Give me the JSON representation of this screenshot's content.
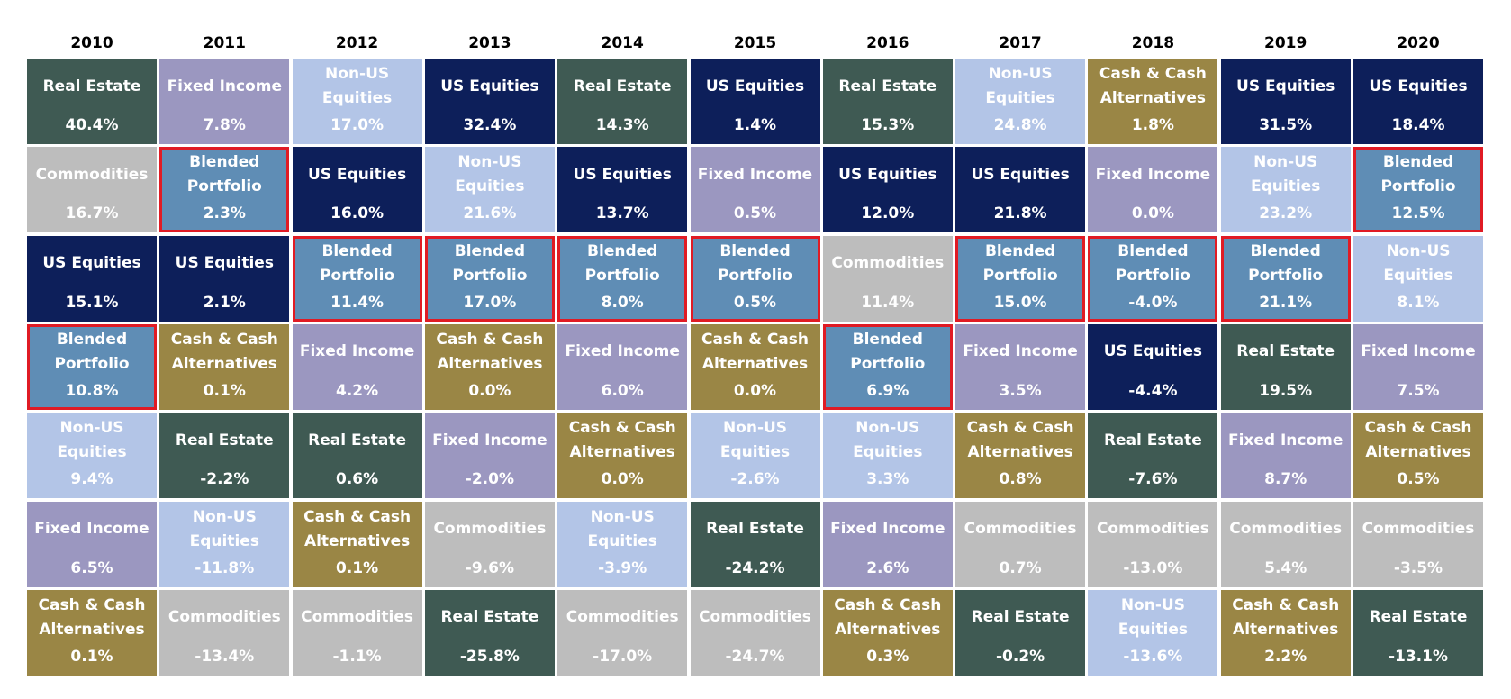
{
  "table": {
    "columns": [
      {
        "year": "2010",
        "cells": [
          {
            "label": "Real Estate",
            "value": "40.4%"
          },
          {
            "label": "Commodities",
            "value": "16.7%"
          },
          {
            "label": "US Equities",
            "value": "15.1%"
          },
          {
            "label": "Blended Portfolio",
            "value": "10.8%"
          },
          {
            "label": "Non-US Equities",
            "value": "9.4%"
          },
          {
            "label": "Fixed Income",
            "value": "6.5%"
          },
          {
            "label": "Cash & Cash Alternatives",
            "value": "0.1%"
          }
        ]
      },
      {
        "year": "2011",
        "cells": [
          {
            "label": "Fixed Income",
            "value": "7.8%"
          },
          {
            "label": "Blended Portfolio",
            "value": "2.3%"
          },
          {
            "label": "US Equities",
            "value": "2.1%"
          },
          {
            "label": "Cash & Cash Alternatives",
            "value": "0.1%"
          },
          {
            "label": "Real Estate",
            "value": "-2.2%"
          },
          {
            "label": "Non-US Equities",
            "value": "-11.8%"
          },
          {
            "label": "Commodities",
            "value": "-13.4%"
          }
        ]
      },
      {
        "year": "2012",
        "cells": [
          {
            "label": "Non-US Equities",
            "value": "17.0%"
          },
          {
            "label": "US Equities",
            "value": "16.0%"
          },
          {
            "label": "Blended Portfolio",
            "value": "11.4%"
          },
          {
            "label": "Fixed Income",
            "value": "4.2%"
          },
          {
            "label": "Real Estate",
            "value": "0.6%"
          },
          {
            "label": "Cash & Cash Alternatives",
            "value": "0.1%"
          },
          {
            "label": "Commodities",
            "value": "-1.1%"
          }
        ]
      },
      {
        "year": "2013",
        "cells": [
          {
            "label": "US Equities",
            "value": "32.4%"
          },
          {
            "label": "Non-US Equities",
            "value": "21.6%"
          },
          {
            "label": "Blended Portfolio",
            "value": "17.0%"
          },
          {
            "label": "Cash & Cash Alternatives",
            "value": "0.0%"
          },
          {
            "label": "Fixed Income",
            "value": "-2.0%"
          },
          {
            "label": "Commodities",
            "value": "-9.6%"
          },
          {
            "label": "Real Estate",
            "value": "-25.8%"
          }
        ]
      },
      {
        "year": "2014",
        "cells": [
          {
            "label": "Real Estate",
            "value": "14.3%"
          },
          {
            "label": "US Equities",
            "value": "13.7%"
          },
          {
            "label": "Blended Portfolio",
            "value": "8.0%"
          },
          {
            "label": "Fixed Income",
            "value": "6.0%"
          },
          {
            "label": "Cash & Cash Alternatives",
            "value": "0.0%"
          },
          {
            "label": "Non-US Equities",
            "value": "-3.9%"
          },
          {
            "label": "Commodities",
            "value": "-17.0%"
          }
        ]
      },
      {
        "year": "2015",
        "cells": [
          {
            "label": "US Equities",
            "value": "1.4%"
          },
          {
            "label": "Fixed Income",
            "value": "0.5%"
          },
          {
            "label": "Blended Portfolio",
            "value": "0.5%"
          },
          {
            "label": "Cash & Cash Alternatives",
            "value": "0.0%"
          },
          {
            "label": "Non-US Equities",
            "value": "-2.6%"
          },
          {
            "label": "Real Estate",
            "value": "-24.2%"
          },
          {
            "label": "Commodities",
            "value": "-24.7%"
          }
        ]
      },
      {
        "year": "2016",
        "cells": [
          {
            "label": "Real Estate",
            "value": "15.3%"
          },
          {
            "label": "US Equities",
            "value": "12.0%"
          },
          {
            "label": "Commodities",
            "value": "11.4%"
          },
          {
            "label": "Blended Portfolio",
            "value": "6.9%"
          },
          {
            "label": "Non-US Equities",
            "value": "3.3%"
          },
          {
            "label": "Fixed Income",
            "value": "2.6%"
          },
          {
            "label": "Cash & Cash Alternatives",
            "value": "0.3%"
          }
        ]
      },
      {
        "year": "2017",
        "cells": [
          {
            "label": "Non-US Equities",
            "value": "24.8%"
          },
          {
            "label": "US Equities",
            "value": "21.8%"
          },
          {
            "label": "Blended Portfolio",
            "value": "15.0%"
          },
          {
            "label": "Fixed Income",
            "value": "3.5%"
          },
          {
            "label": "Cash & Cash Alternatives",
            "value": "0.8%"
          },
          {
            "label": "Commodities",
            "value": "0.7%"
          },
          {
            "label": "Real Estate",
            "value": "-0.2%"
          }
        ]
      },
      {
        "year": "2018",
        "cells": [
          {
            "label": "Cash & Cash Alternatives",
            "value": "1.8%"
          },
          {
            "label": "Fixed Income",
            "value": "0.0%"
          },
          {
            "label": "Blended Portfolio",
            "value": "-4.0%"
          },
          {
            "label": "US Equities",
            "value": "-4.4%"
          },
          {
            "label": "Real Estate",
            "value": "-7.6%"
          },
          {
            "label": "Commodities",
            "value": "-13.0%"
          },
          {
            "label": "Non-US Equities",
            "value": "-13.6%"
          }
        ]
      },
      {
        "year": "2019",
        "cells": [
          {
            "label": "US Equities",
            "value": "31.5%"
          },
          {
            "label": "Non-US Equities",
            "value": "23.2%"
          },
          {
            "label": "Blended Portfolio",
            "value": "21.1%"
          },
          {
            "label": "Real Estate",
            "value": "19.5%"
          },
          {
            "label": "Fixed Income",
            "value": "8.7%"
          },
          {
            "label": "Commodities",
            "value": "5.4%"
          },
          {
            "label": "Cash & Cash Alternatives",
            "value": "2.2%"
          }
        ]
      },
      {
        "year": "2020",
        "cells": [
          {
            "label": "US Equities",
            "value": "18.4%"
          },
          {
            "label": "Blended Portfolio",
            "value": "12.5%"
          },
          {
            "label": "Non-US Equities",
            "value": "8.1%"
          },
          {
            "label": "Fixed Income",
            "value": "7.5%"
          },
          {
            "label": "Cash & Cash Alternatives",
            "value": "0.5%"
          },
          {
            "label": "Commodities",
            "value": "-3.5%"
          },
          {
            "label": "Real Estate",
            "value": "-13.1%"
          }
        ]
      }
    ]
  },
  "colors": {
    "Real Estate": "#3f5a53",
    "Fixed Income": "#9b97c0",
    "Non-US Equities": "#b3c5e7",
    "US Equities": "#0d1f5a",
    "Commodities": "#bdbdbd",
    "Cash & Cash Alternatives": "#9a8645",
    "Blended Portfolio": "#5f8db5"
  },
  "outline": {
    "Blended Portfolio": "#e01b24"
  }
}
